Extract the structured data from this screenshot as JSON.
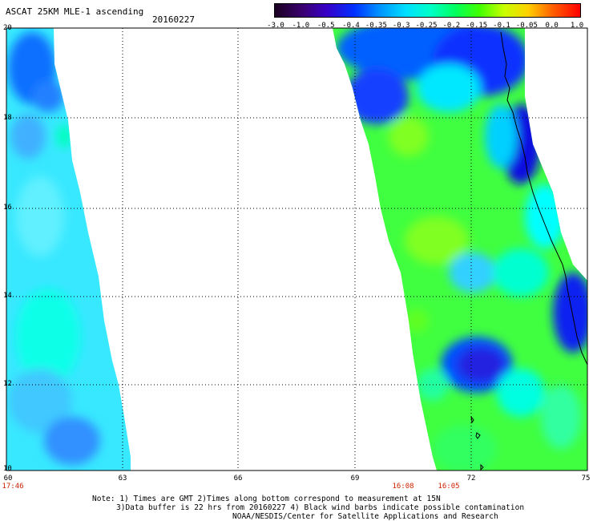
{
  "header": {
    "title": "ASCAT 25KM MLE-1 ascending",
    "date": "20160227"
  },
  "colorbar": {
    "ticks": [
      "-3.0",
      "-1.0",
      "-0.5",
      "-0.4",
      "-0.35",
      "-0.3",
      "-0.25",
      "-0.2",
      "-0.15",
      "-0.1",
      "-0.05",
      "0.0",
      "1.0"
    ]
  },
  "map": {
    "lat_labels": [
      "20",
      "18",
      "16",
      "14",
      "12",
      "10"
    ],
    "lon_labels": [
      "60",
      "63",
      "66",
      "69",
      "72",
      "75"
    ],
    "pass_times": [
      "17:46",
      "16:08",
      "16:05"
    ],
    "colors": {
      "blue": "#1040ff",
      "cyan": "#00ffff",
      "green": "#40ff20",
      "lightblue": "#30d0ff"
    }
  },
  "notes": {
    "line1": "Note: 1) Times are GMT 2)Times along bottom correspond to measurement at 15N",
    "line2": "3)Data buffer is 22 hrs from 20160227 4) Black wind barbs indicate possible contamination",
    "line3": "NOAA/NESDIS/Center for Satellite Applications and Research"
  }
}
